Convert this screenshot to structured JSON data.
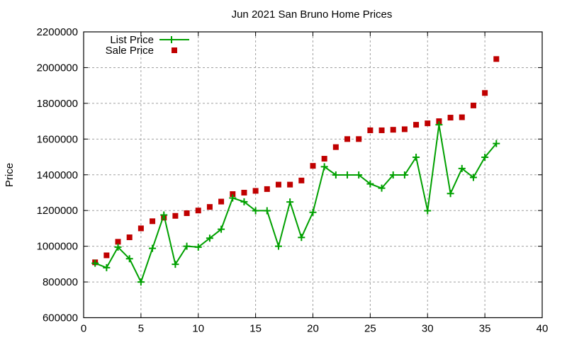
{
  "chart_data": {
    "type": "line",
    "title": "Jun 2021 San Bruno Home Prices",
    "xlabel": "",
    "ylabel": "Price",
    "xlim": [
      0,
      40
    ],
    "ylim": [
      600000,
      2200000
    ],
    "xticks": [
      0,
      5,
      10,
      15,
      20,
      25,
      30,
      35,
      40
    ],
    "yticks": [
      600000,
      800000,
      1000000,
      1200000,
      1400000,
      1600000,
      1800000,
      2000000,
      2200000
    ],
    "grid": true,
    "legend_position": "top-left",
    "x": [
      1,
      2,
      3,
      4,
      5,
      6,
      7,
      8,
      9,
      10,
      11,
      12,
      13,
      14,
      15,
      16,
      17,
      18,
      19,
      20,
      21,
      22,
      23,
      24,
      25,
      26,
      27,
      28,
      29,
      30,
      31,
      32,
      33,
      34,
      35,
      36
    ],
    "series": [
      {
        "name": "List Price",
        "style": "linespoints",
        "marker": "plus",
        "color": "#00a000",
        "values": [
          905000,
          880000,
          995000,
          930000,
          800000,
          988000,
          1175000,
          899000,
          1000000,
          995000,
          1045000,
          1095000,
          1270000,
          1249000,
          1199000,
          1199000,
          1000000,
          1248000,
          1049000,
          1190000,
          1445000,
          1399000,
          1399000,
          1399000,
          1349000,
          1325000,
          1399000,
          1399000,
          1498000,
          1199000,
          1680000,
          1295000,
          1435000,
          1385000,
          1498000,
          1575000
        ]
      },
      {
        "name": "Sale Price",
        "style": "points",
        "marker": "square",
        "color": "#c00000",
        "values": [
          910000,
          949000,
          1025000,
          1050000,
          1100000,
          1140000,
          1160000,
          1170000,
          1185000,
          1200000,
          1220000,
          1250000,
          1292000,
          1300000,
          1310000,
          1320000,
          1345000,
          1345000,
          1368000,
          1450000,
          1490000,
          1555000,
          1600000,
          1600000,
          1649000,
          1649000,
          1652000,
          1655000,
          1680000,
          1688000,
          1700000,
          1720000,
          1722000,
          1788000,
          1858000,
          2048000
        ]
      }
    ]
  }
}
